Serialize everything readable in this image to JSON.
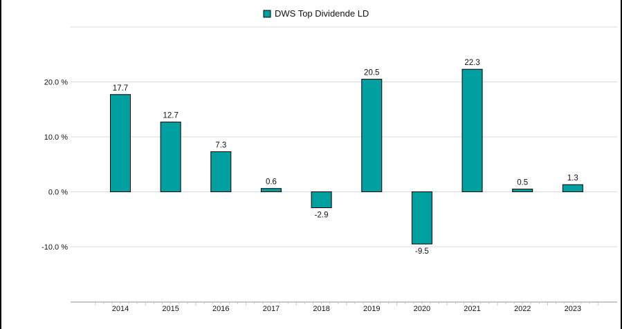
{
  "chart_data": {
    "type": "bar",
    "categories": [
      "2014",
      "2015",
      "2016",
      "2017",
      "2018",
      "2019",
      "2020",
      "2021",
      "2022",
      "2023"
    ],
    "series": [
      {
        "name": "DWS Top Dividende LD",
        "values": [
          17.7,
          12.7,
          7.3,
          0.6,
          -2.9,
          20.5,
          -9.5,
          22.3,
          0.5,
          1.3
        ],
        "labels": [
          "17.7",
          "12.7",
          "7.3",
          "0.6",
          "-2.9",
          "20.5",
          "-9.5",
          "22.3",
          "0.5",
          "1.3"
        ]
      }
    ],
    "y_ticks": [
      {
        "value": 20,
        "label": "20.0 %"
      },
      {
        "value": 10,
        "label": "10.0 %"
      },
      {
        "value": 0,
        "label": "0.0 %"
      },
      {
        "value": -10,
        "label": "-10.0 %"
      }
    ],
    "ylim": [
      -20,
      30
    ],
    "grid": "horizontal",
    "legend_position": "top-center",
    "colors": {
      "bar_fill": "#00A0A0",
      "bar_stroke": "#000000",
      "grid": "#D9D9D9",
      "axis": "#C8C8C8"
    }
  }
}
